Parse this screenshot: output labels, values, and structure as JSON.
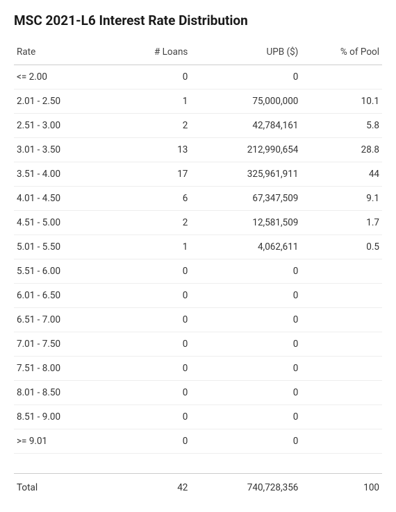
{
  "title": "MSC 2021-L6 Interest Rate Distribution",
  "table": {
    "columns": [
      "Rate",
      "# Loans",
      "UPB ($)",
      "% of Pool"
    ],
    "rows": [
      {
        "rate": "<= 2.00",
        "loans": "0",
        "upb": "0",
        "pct": ""
      },
      {
        "rate": "2.01 - 2.50",
        "loans": "1",
        "upb": "75,000,000",
        "pct": "10.1"
      },
      {
        "rate": "2.51 - 3.00",
        "loans": "2",
        "upb": "42,784,161",
        "pct": "5.8"
      },
      {
        "rate": "3.01 - 3.50",
        "loans": "13",
        "upb": "212,990,654",
        "pct": "28.8"
      },
      {
        "rate": "3.51 - 4.00",
        "loans": "17",
        "upb": "325,961,911",
        "pct": "44"
      },
      {
        "rate": "4.01 - 4.50",
        "loans": "6",
        "upb": "67,347,509",
        "pct": "9.1"
      },
      {
        "rate": "4.51 - 5.00",
        "loans": "2",
        "upb": "12,581,509",
        "pct": "1.7"
      },
      {
        "rate": "5.01 - 5.50",
        "loans": "1",
        "upb": "4,062,611",
        "pct": "0.5"
      },
      {
        "rate": "5.51 - 6.00",
        "loans": "0",
        "upb": "0",
        "pct": ""
      },
      {
        "rate": "6.01 - 6.50",
        "loans": "0",
        "upb": "0",
        "pct": ""
      },
      {
        "rate": "6.51 - 7.00",
        "loans": "0",
        "upb": "0",
        "pct": ""
      },
      {
        "rate": "7.01 - 7.50",
        "loans": "0",
        "upb": "0",
        "pct": ""
      },
      {
        "rate": "7.51 - 8.00",
        "loans": "0",
        "upb": "0",
        "pct": ""
      },
      {
        "rate": "8.01 - 8.50",
        "loans": "0",
        "upb": "0",
        "pct": ""
      },
      {
        "rate": "8.51 - 9.00",
        "loans": "0",
        "upb": "0",
        "pct": ""
      },
      {
        "rate": ">= 9.01",
        "loans": "0",
        "upb": "0",
        "pct": ""
      }
    ],
    "total": {
      "label": "Total",
      "loans": "42",
      "upb": "740,728,356",
      "pct": "100"
    }
  },
  "style": {
    "text_color": "#333333",
    "title_color": "#1a1a1a",
    "header_border": "#cccccc",
    "row_border": "#eeeeee",
    "background": "#ffffff",
    "title_fontsize": 19,
    "cell_fontsize": 13.5
  }
}
